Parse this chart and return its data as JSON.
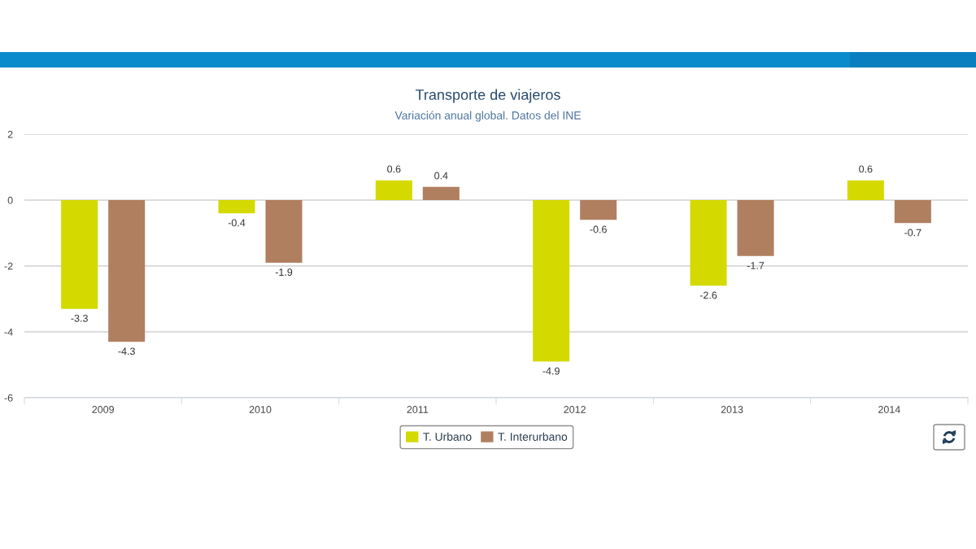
{
  "chart_data": {
    "type": "bar",
    "title": "Transporte de viajeros",
    "subtitle": "Variación anual global. Datos del INE",
    "categories": [
      "2009",
      "2010",
      "2011",
      "2012",
      "2013",
      "2014"
    ],
    "series": [
      {
        "name": "T. Urbano",
        "color": "#d4da00",
        "values": [
          -3.3,
          -0.4,
          0.6,
          -4.9,
          -2.6,
          0.6
        ]
      },
      {
        "name": "T. Interurbano",
        "color": "#b07f60",
        "values": [
          -4.3,
          -1.9,
          0.4,
          -0.6,
          -1.7,
          -0.7
        ]
      }
    ],
    "ylim": [
      -6,
      2
    ],
    "yticks": [
      -6,
      -4,
      -2,
      0,
      2
    ],
    "grid": "y",
    "legend": "bottom",
    "data_labels": true
  }
}
